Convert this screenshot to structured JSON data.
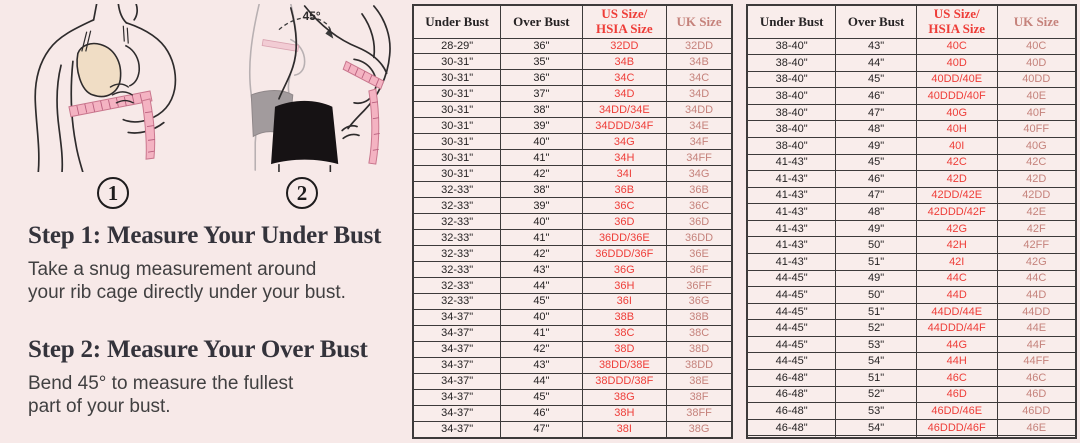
{
  "left_panel": {
    "figure_numbers": [
      "1",
      "2"
    ],
    "angle_label": "45°",
    "steps": [
      {
        "heading": "Step 1: Measure Your Under Bust",
        "body": "Take a snug measurement around\nyour rib cage directly under your bust."
      },
      {
        "heading": "Step 2: Measure Your Over Bust",
        "body": "Bend 45° to measure the fullest\npart of your bust."
      }
    ]
  },
  "tables": [
    {
      "headers": [
        {
          "lines": [
            "Under Bust"
          ],
          "style": "dark"
        },
        {
          "lines": [
            "Over Bust"
          ],
          "style": "dark"
        },
        {
          "lines": [
            "US Size/",
            "HSIA Size"
          ],
          "style": "red"
        },
        {
          "lines": [
            "UK Size"
          ],
          "style": "rose"
        }
      ],
      "col_styles": [
        "dark",
        "dark",
        "red",
        "rose"
      ],
      "rows": [
        [
          "28-29\"",
          "36\"",
          "32DD",
          "32DD"
        ],
        [
          "30-31\"",
          "35\"",
          "34B",
          "34B"
        ],
        [
          "30-31\"",
          "36\"",
          "34C",
          "34C"
        ],
        [
          "30-31\"",
          "37\"",
          "34D",
          "34D"
        ],
        [
          "30-31\"",
          "38\"",
          "34DD/34E",
          "34DD"
        ],
        [
          "30-31\"",
          "39\"",
          "34DDD/34F",
          "34E"
        ],
        [
          "30-31\"",
          "40\"",
          "34G",
          "34F"
        ],
        [
          "30-31\"",
          "41\"",
          "34H",
          "34FF"
        ],
        [
          "30-31\"",
          "42\"",
          "34I",
          "34G"
        ],
        [
          "32-33\"",
          "38\"",
          "36B",
          "36B"
        ],
        [
          "32-33\"",
          "39\"",
          "36C",
          "36C"
        ],
        [
          "32-33\"",
          "40\"",
          "36D",
          "36D"
        ],
        [
          "32-33\"",
          "41\"",
          "36DD/36E",
          "36DD"
        ],
        [
          "32-33\"",
          "42\"",
          "36DDD/36F",
          "36E"
        ],
        [
          "32-33\"",
          "43\"",
          "36G",
          "36F"
        ],
        [
          "32-33\"",
          "44\"",
          "36H",
          "36FF"
        ],
        [
          "32-33\"",
          "45\"",
          "36I",
          "36G"
        ],
        [
          "34-37\"",
          "40\"",
          "38B",
          "38B"
        ],
        [
          "34-37\"",
          "41\"",
          "38C",
          "38C"
        ],
        [
          "34-37\"",
          "42\"",
          "38D",
          "38D"
        ],
        [
          "34-37\"",
          "43\"",
          "38DD/38E",
          "38DD"
        ],
        [
          "34-37\"",
          "44\"",
          "38DDD/38F",
          "38E"
        ],
        [
          "34-37\"",
          "45\"",
          "38G",
          "38F"
        ],
        [
          "34-37\"",
          "46\"",
          "38H",
          "38FF"
        ],
        [
          "34-37\"",
          "47\"",
          "38I",
          "38G"
        ]
      ]
    },
    {
      "headers": [
        {
          "lines": [
            "Under Bust"
          ],
          "style": "dark"
        },
        {
          "lines": [
            "Over Bust"
          ],
          "style": "dark"
        },
        {
          "lines": [
            "US Size/",
            "HSIA Size"
          ],
          "style": "red"
        },
        {
          "lines": [
            "UK Size"
          ],
          "style": "rose"
        }
      ],
      "col_styles": [
        "dark",
        "dark",
        "red",
        "rose"
      ],
      "rows": [
        [
          "38-40\"",
          "43\"",
          "40C",
          "40C"
        ],
        [
          "38-40\"",
          "44\"",
          "40D",
          "40D"
        ],
        [
          "38-40\"",
          "45\"",
          "40DD/40E",
          "40DD"
        ],
        [
          "38-40\"",
          "46\"",
          "40DDD/40F",
          "40E"
        ],
        [
          "38-40\"",
          "47\"",
          "40G",
          "40F"
        ],
        [
          "38-40\"",
          "48\"",
          "40H",
          "40FF"
        ],
        [
          "38-40\"",
          "49\"",
          "40I",
          "40G"
        ],
        [
          "41-43\"",
          "45\"",
          "42C",
          "42C"
        ],
        [
          "41-43\"",
          "46\"",
          "42D",
          "42D"
        ],
        [
          "41-43\"",
          "47\"",
          "42DD/42E",
          "42DD"
        ],
        [
          "41-43\"",
          "48\"",
          "42DDD/42F",
          "42E"
        ],
        [
          "41-43\"",
          "49\"",
          "42G",
          "42F"
        ],
        [
          "41-43\"",
          "50\"",
          "42H",
          "42FF"
        ],
        [
          "41-43\"",
          "51\"",
          "42I",
          "42G"
        ],
        [
          "44-45\"",
          "49\"",
          "44C",
          "44C"
        ],
        [
          "44-45\"",
          "50\"",
          "44D",
          "44D"
        ],
        [
          "44-45\"",
          "51\"",
          "44DD/44E",
          "44DD"
        ],
        [
          "44-45\"",
          "52\"",
          "44DDD/44F",
          "44E"
        ],
        [
          "44-45\"",
          "53\"",
          "44G",
          "44F"
        ],
        [
          "44-45\"",
          "54\"",
          "44H",
          "44FF"
        ],
        [
          "46-48\"",
          "51\"",
          "46C",
          "46C"
        ],
        [
          "46-48\"",
          "52\"",
          "46D",
          "46D"
        ],
        [
          "46-48\"",
          "53\"",
          "46DD/46E",
          "46DD"
        ],
        [
          "46-48\"",
          "54\"",
          "46DDD/46F",
          "46E"
        ],
        [
          "",
          "",
          "",
          ""
        ]
      ]
    }
  ],
  "colors": {
    "bg": "#f7e9e8",
    "cellbg": "#f9edeb",
    "border": "#3d3a3a",
    "dark": "#262324",
    "red": "#ee3d38",
    "rose": "#c5827b",
    "heading": "#34333b",
    "body-text": "#414041",
    "bra": "#f0ddc5",
    "tape": "#f4b3c2",
    "tape-edge": "#c9768d",
    "ghost": "#b8b0b2",
    "panty": "#a29b9d"
  }
}
